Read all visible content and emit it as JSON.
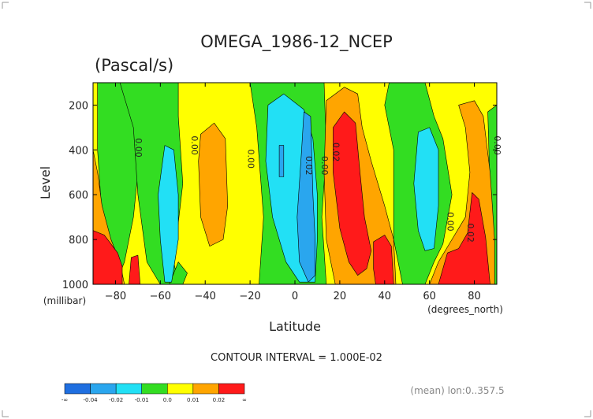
{
  "chart_data": {
    "type": "contour",
    "title": "OMEGA_1986-12_NCEP",
    "subtitle": "(Pascal/s)",
    "xlabel": "Latitude",
    "x_units": "(degrees_north)",
    "ylabel": "Level",
    "y_units": "(millibar)",
    "xlim": [
      -90,
      90
    ],
    "ylim": [
      1000,
      100
    ],
    "x_ticks": [
      -80,
      -60,
      -40,
      -20,
      0,
      20,
      40,
      60,
      80
    ],
    "y_ticks": [
      200,
      400,
      600,
      800,
      1000
    ],
    "contour_interval_text": "CONTOUR INTERVAL = 1.000E-02",
    "mean_text": "(mean) lon:0..357.5",
    "contour_labels": [
      {
        "text": "0.00",
        "lat": -71,
        "level": 390
      },
      {
        "text": "0.00",
        "lat": -46,
        "level": 380
      },
      {
        "text": "0.00",
        "lat": -21,
        "level": 440
      },
      {
        "text": "0.02",
        "lat": 5,
        "level": 470
      },
      {
        "text": "0.00",
        "lat": 12,
        "level": 470
      },
      {
        "text": "0.02",
        "lat": 17,
        "level": 410
      },
      {
        "text": "0.00",
        "lat": 68,
        "level": 720
      },
      {
        "text": "0.02",
        "lat": 77,
        "level": 770
      },
      {
        "text": "0.00",
        "lat": 89,
        "level": 380
      }
    ],
    "colorbar": {
      "colors": [
        "#1f6fe0",
        "#2aa6ee",
        "#22e0f5",
        "#33dd22",
        "#ffff00",
        "#ffa500",
        "#ff1a1a"
      ],
      "labels": [
        "-∞",
        "-0.04",
        "-0.02",
        "-0.01",
        "0.0",
        "0.01",
        "0.02",
        "∞"
      ]
    },
    "bands": [
      {
        "color": "#ffff00",
        "lat0": -90,
        "lat1": 90,
        "top": 100,
        "bottom": 1000
      }
    ],
    "regions": [
      {
        "name": "green-west",
        "color": "#33dd22",
        "pts": [
          [
            -88,
            100
          ],
          [
            -75,
            100
          ],
          [
            -72,
            250
          ],
          [
            -70,
            500
          ],
          [
            -72,
            700
          ],
          [
            -76,
            900
          ],
          [
            -80,
            1000
          ],
          [
            -88,
            1000
          ],
          [
            -86,
            700
          ],
          [
            -88,
            400
          ]
        ]
      },
      {
        "name": "green-fill-west",
        "color": "#33dd22",
        "pts": [
          [
            -78,
            100
          ],
          [
            -52,
            100
          ],
          [
            -52,
            250
          ],
          [
            -50,
            550
          ],
          [
            -54,
            900
          ],
          [
            -52,
            1000
          ],
          [
            -60,
            1000
          ],
          [
            -66,
            900
          ],
          [
            -70,
            600
          ],
          [
            -72,
            300
          ]
        ]
      },
      {
        "name": "green-mid",
        "color": "#33dd22",
        "pts": [
          [
            -20,
            100
          ],
          [
            13,
            100
          ],
          [
            14,
            400
          ],
          [
            12,
            700
          ],
          [
            14,
            1000
          ],
          [
            -16,
            1000
          ],
          [
            -14,
            700
          ],
          [
            -17,
            300
          ]
        ]
      },
      {
        "name": "green-east",
        "color": "#33dd22",
        "pts": [
          [
            42,
            100
          ],
          [
            58,
            100
          ],
          [
            62,
            250
          ],
          [
            66,
            350
          ],
          [
            70,
            600
          ],
          [
            66,
            820
          ],
          [
            62,
            900
          ],
          [
            58,
            1000
          ],
          [
            48,
            1000
          ],
          [
            44,
            800
          ],
          [
            44,
            400
          ],
          [
            40,
            200
          ]
        ]
      },
      {
        "name": "green-far-east",
        "color": "#33dd22",
        "pts": [
          [
            86,
            230
          ],
          [
            90,
            200
          ],
          [
            90,
            1000
          ],
          [
            88,
            1000
          ],
          [
            87,
            600
          ]
        ]
      },
      {
        "name": "green-small",
        "color": "#33dd22",
        "pts": [
          [
            -52,
            900
          ],
          [
            -48,
            950
          ],
          [
            -50,
            1000
          ],
          [
            -56,
            1000
          ]
        ]
      },
      {
        "name": "cyan-west",
        "color": "#22e0f5",
        "pts": [
          [
            -58,
            380
          ],
          [
            -54,
            400
          ],
          [
            -52,
            600
          ],
          [
            -52,
            800
          ],
          [
            -55,
            990
          ],
          [
            -58,
            990
          ],
          [
            -60,
            800
          ],
          [
            -61,
            600
          ]
        ]
      },
      {
        "name": "cyan-mid",
        "color": "#22e0f5",
        "pts": [
          [
            -12,
            200
          ],
          [
            -5,
            150
          ],
          [
            4,
            220
          ],
          [
            8,
            350
          ],
          [
            10,
            600
          ],
          [
            10,
            800
          ],
          [
            9,
            990
          ],
          [
            2,
            990
          ],
          [
            -4,
            900
          ],
          [
            -10,
            700
          ],
          [
            -13,
            450
          ]
        ]
      },
      {
        "name": "cyan-east",
        "color": "#22e0f5",
        "pts": [
          [
            55,
            320
          ],
          [
            60,
            300
          ],
          [
            64,
            400
          ],
          [
            64,
            650
          ],
          [
            62,
            840
          ],
          [
            58,
            850
          ],
          [
            55,
            760
          ],
          [
            53,
            550
          ]
        ]
      },
      {
        "name": "blue-mid",
        "color": "#2aa6ee",
        "pts": [
          [
            4,
            230
          ],
          [
            7,
            250
          ],
          [
            8,
            600
          ],
          [
            9,
            800
          ],
          [
            9,
            960
          ],
          [
            6,
            990
          ],
          [
            2,
            900
          ],
          [
            1,
            700
          ],
          [
            3,
            400
          ]
        ]
      },
      {
        "name": "blue-small",
        "color": "#2aa6ee",
        "pts": [
          [
            -7,
            380
          ],
          [
            -5,
            380
          ],
          [
            -5,
            520
          ],
          [
            -7,
            520
          ]
        ]
      },
      {
        "name": "orange-west",
        "color": "#ffa500",
        "pts": [
          [
            -90,
            400
          ],
          [
            -88,
            500
          ],
          [
            -86,
            650
          ],
          [
            -82,
            800
          ],
          [
            -78,
            900
          ],
          [
            -76,
            1000
          ],
          [
            -90,
            1000
          ]
        ]
      },
      {
        "name": "orange-mid-west",
        "color": "#ffa500",
        "pts": [
          [
            -42,
            330
          ],
          [
            -36,
            280
          ],
          [
            -31,
            350
          ],
          [
            -30,
            650
          ],
          [
            -32,
            800
          ],
          [
            -38,
            830
          ],
          [
            -42,
            700
          ],
          [
            -43,
            450
          ]
        ]
      },
      {
        "name": "orange-north",
        "color": "#ffa500",
        "pts": [
          [
            14,
            180
          ],
          [
            22,
            120
          ],
          [
            28,
            150
          ],
          [
            30,
            300
          ],
          [
            34,
            450
          ],
          [
            40,
            650
          ],
          [
            44,
            800
          ],
          [
            45,
            1000
          ],
          [
            18,
            1000
          ],
          [
            14,
            800
          ],
          [
            13,
            500
          ]
        ]
      },
      {
        "name": "orange-east",
        "color": "#ffa500",
        "pts": [
          [
            73,
            200
          ],
          [
            80,
            180
          ],
          [
            84,
            250
          ],
          [
            87,
            500
          ],
          [
            89,
            800
          ],
          [
            89,
            1000
          ],
          [
            60,
            1000
          ],
          [
            64,
            900
          ],
          [
            70,
            800
          ],
          [
            76,
            700
          ],
          [
            78,
            500
          ],
          [
            76,
            300
          ]
        ]
      },
      {
        "name": "red-west",
        "color": "#ff1a1a",
        "pts": [
          [
            -90,
            760
          ],
          [
            -85,
            780
          ],
          [
            -82,
            820
          ],
          [
            -79,
            860
          ],
          [
            -77,
            920
          ],
          [
            -77,
            1000
          ],
          [
            -90,
            1000
          ]
        ]
      },
      {
        "name": "red-small-west",
        "color": "#ff1a1a",
        "pts": [
          [
            -73,
            880
          ],
          [
            -70,
            870
          ],
          [
            -69,
            1000
          ],
          [
            -74,
            1000
          ]
        ]
      },
      {
        "name": "red-north",
        "color": "#ff1a1a",
        "pts": [
          [
            17,
            300
          ],
          [
            22,
            230
          ],
          [
            27,
            280
          ],
          [
            29,
            500
          ],
          [
            31,
            700
          ],
          [
            34,
            850
          ],
          [
            32,
            930
          ],
          [
            28,
            960
          ],
          [
            24,
            900
          ],
          [
            20,
            750
          ],
          [
            17,
            500
          ]
        ]
      },
      {
        "name": "red-east-a",
        "color": "#ff1a1a",
        "pts": [
          [
            35,
            810
          ],
          [
            40,
            780
          ],
          [
            43,
            830
          ],
          [
            44,
            1000
          ],
          [
            36,
            1000
          ],
          [
            35,
            930
          ]
        ]
      },
      {
        "name": "red-east-b",
        "color": "#ff1a1a",
        "pts": [
          [
            68,
            860
          ],
          [
            73,
            840
          ],
          [
            77,
            770
          ],
          [
            79,
            590
          ],
          [
            82,
            620
          ],
          [
            85,
            790
          ],
          [
            87,
            1000
          ],
          [
            64,
            1000
          ]
        ]
      }
    ]
  }
}
